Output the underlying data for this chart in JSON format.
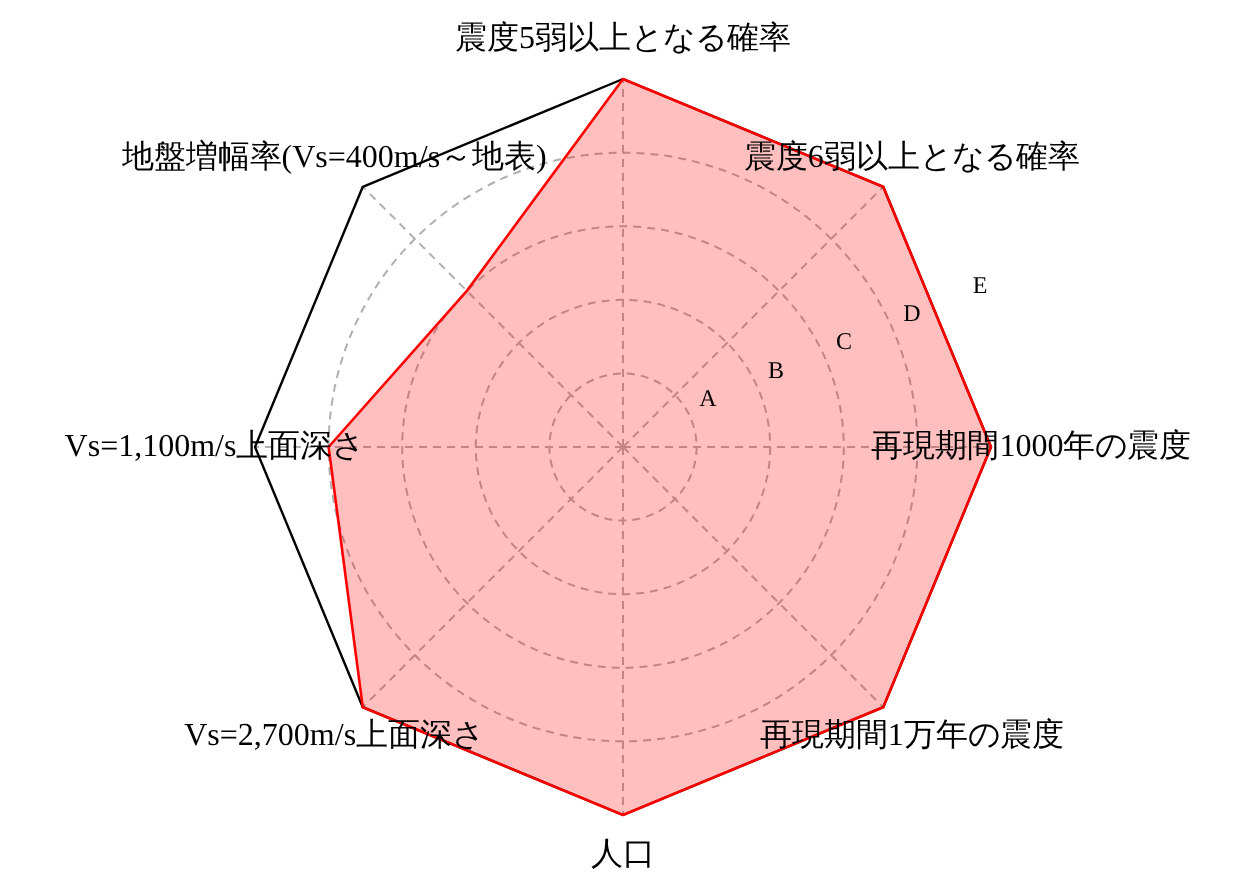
{
  "chart_data": {
    "type": "radar",
    "categories": [
      "震度5弱以上となる確率",
      "震度6弱以上となる確率",
      "再現期間1000年の震度",
      "再現期間1万年の震度",
      "人口",
      "Vs=2,700m/s上面深さ",
      "Vs=1,100m/s上面深さ",
      "地盤増幅率(Vs=400m/s～地表)"
    ],
    "series": [
      {
        "color": "#ff0000",
        "values": [
          5,
          5,
          5,
          5,
          5,
          5,
          4,
          3
        ]
      }
    ],
    "ylim": [
      0,
      5
    ],
    "yticks": [
      {
        "value": 1,
        "label": "A"
      },
      {
        "value": 2,
        "label": "B"
      },
      {
        "value": 3,
        "label": "C"
      },
      {
        "value": 4,
        "label": "D"
      },
      {
        "value": 5,
        "label": "E"
      }
    ],
    "grid": true
  }
}
